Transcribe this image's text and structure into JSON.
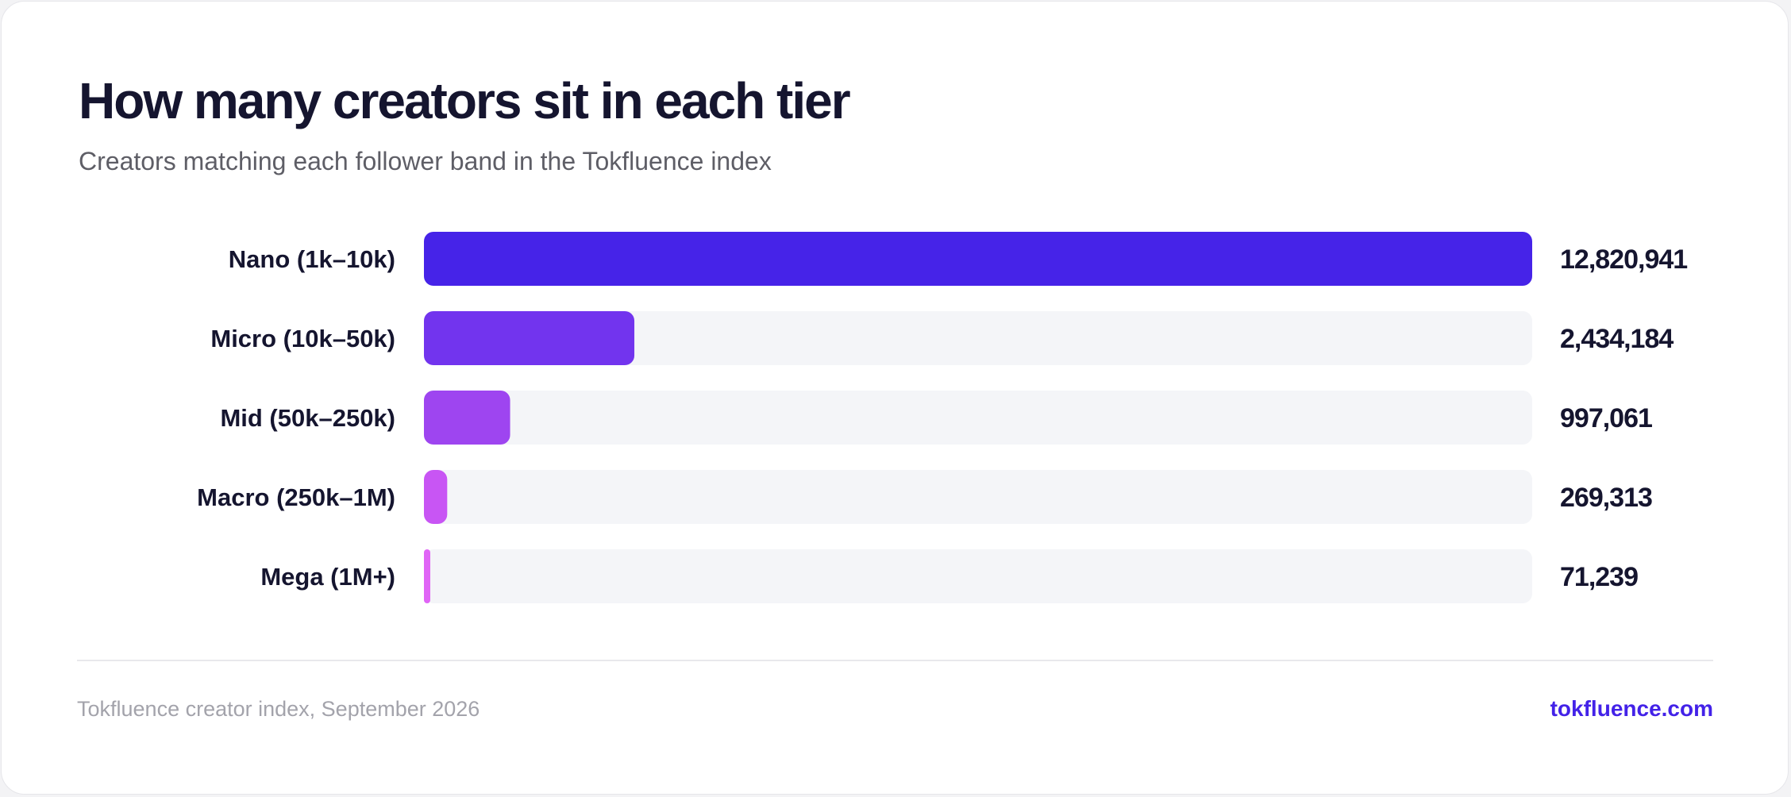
{
  "card": {
    "title": "How many creators sit in each tier",
    "subtitle": "Creators matching each follower band in the Tokfluence index"
  },
  "footer": {
    "source": "Tokfluence creator index, September 2026",
    "link": "tokfluence.com"
  },
  "colors": {
    "track": "#f4f5f8",
    "text": "#15152f",
    "link": "#4322e8"
  },
  "chart_data": {
    "type": "bar",
    "orientation": "horizontal",
    "title": "How many creators sit in each tier",
    "subtitle": "Creators matching each follower band in the Tokfluence index",
    "xlabel": "",
    "ylabel": "",
    "grid": false,
    "legend": "none",
    "xlim": [
      0,
      12820941
    ],
    "categories": [
      "Nano (1k–10k)",
      "Micro (10k–50k)",
      "Mid (50k–250k)",
      "Macro (250k–1M)",
      "Mega (1M+)"
    ],
    "values": [
      12820941,
      2434184,
      997061,
      269313,
      71239
    ],
    "value_labels": [
      "12,820,941",
      "2,434,184",
      "997,061",
      "269,313",
      "71,239"
    ],
    "bar_colors": [
      "#4623e8",
      "#7234ee",
      "#9e45f0",
      "#c855f4",
      "#e065f6"
    ]
  }
}
